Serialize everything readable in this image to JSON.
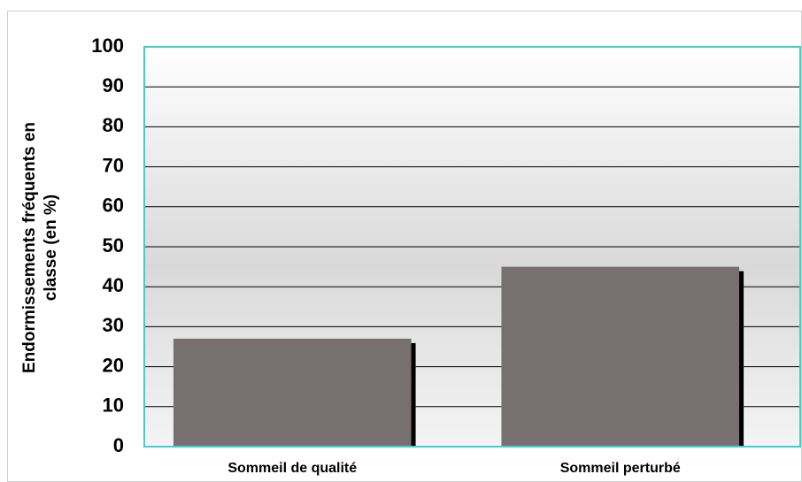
{
  "chart_data": {
    "type": "bar",
    "ylabel": [
      "Endormissements fréquents en",
      "classe (en %)"
    ],
    "categories": [
      "Sommeil de qualité",
      "Sommeil perturbé"
    ],
    "values": [
      27,
      45
    ],
    "color": "#767170",
    "ylim": [
      0,
      100
    ],
    "yticks": [
      0,
      10,
      20,
      30,
      40,
      50,
      60,
      70,
      80,
      90,
      100
    ],
    "grid": true
  }
}
